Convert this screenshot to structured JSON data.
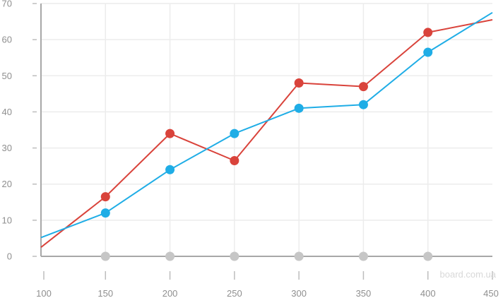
{
  "chart_data": {
    "type": "line",
    "title": "",
    "xlabel": "",
    "ylabel": "",
    "xlim": [
      100,
      450
    ],
    "ylim": [
      0,
      70
    ],
    "x_ticks": [
      100,
      150,
      200,
      250,
      300,
      350,
      400,
      450
    ],
    "y_ticks": [
      0,
      10,
      20,
      30,
      40,
      50,
      60,
      70
    ],
    "grid": true,
    "series": [
      {
        "color": "#d9433b",
        "x": [
          100,
          150,
          200,
          250,
          300,
          350,
          400,
          450
        ],
        "values": [
          2.5,
          16.5,
          34,
          26.5,
          48,
          47,
          62,
          65.5
        ],
        "markers": [
          false,
          true,
          true,
          true,
          true,
          true,
          true,
          false
        ]
      },
      {
        "color": "#1fade6",
        "x": [
          100,
          150,
          200,
          250,
          300,
          350,
          400,
          450
        ],
        "values": [
          5.2,
          12,
          24,
          34,
          41,
          42,
          56.5,
          67.5
        ],
        "markers": [
          false,
          true,
          true,
          true,
          true,
          true,
          true,
          false
        ]
      },
      {
        "color": "#c6c6c6",
        "x": [
          150,
          200,
          250,
          300,
          350,
          400
        ],
        "values": [
          0,
          0,
          0,
          0,
          0,
          0
        ],
        "markers": [
          true,
          true,
          true,
          true,
          true,
          true
        ],
        "line": false
      }
    ]
  },
  "watermark": "board.com.ua"
}
